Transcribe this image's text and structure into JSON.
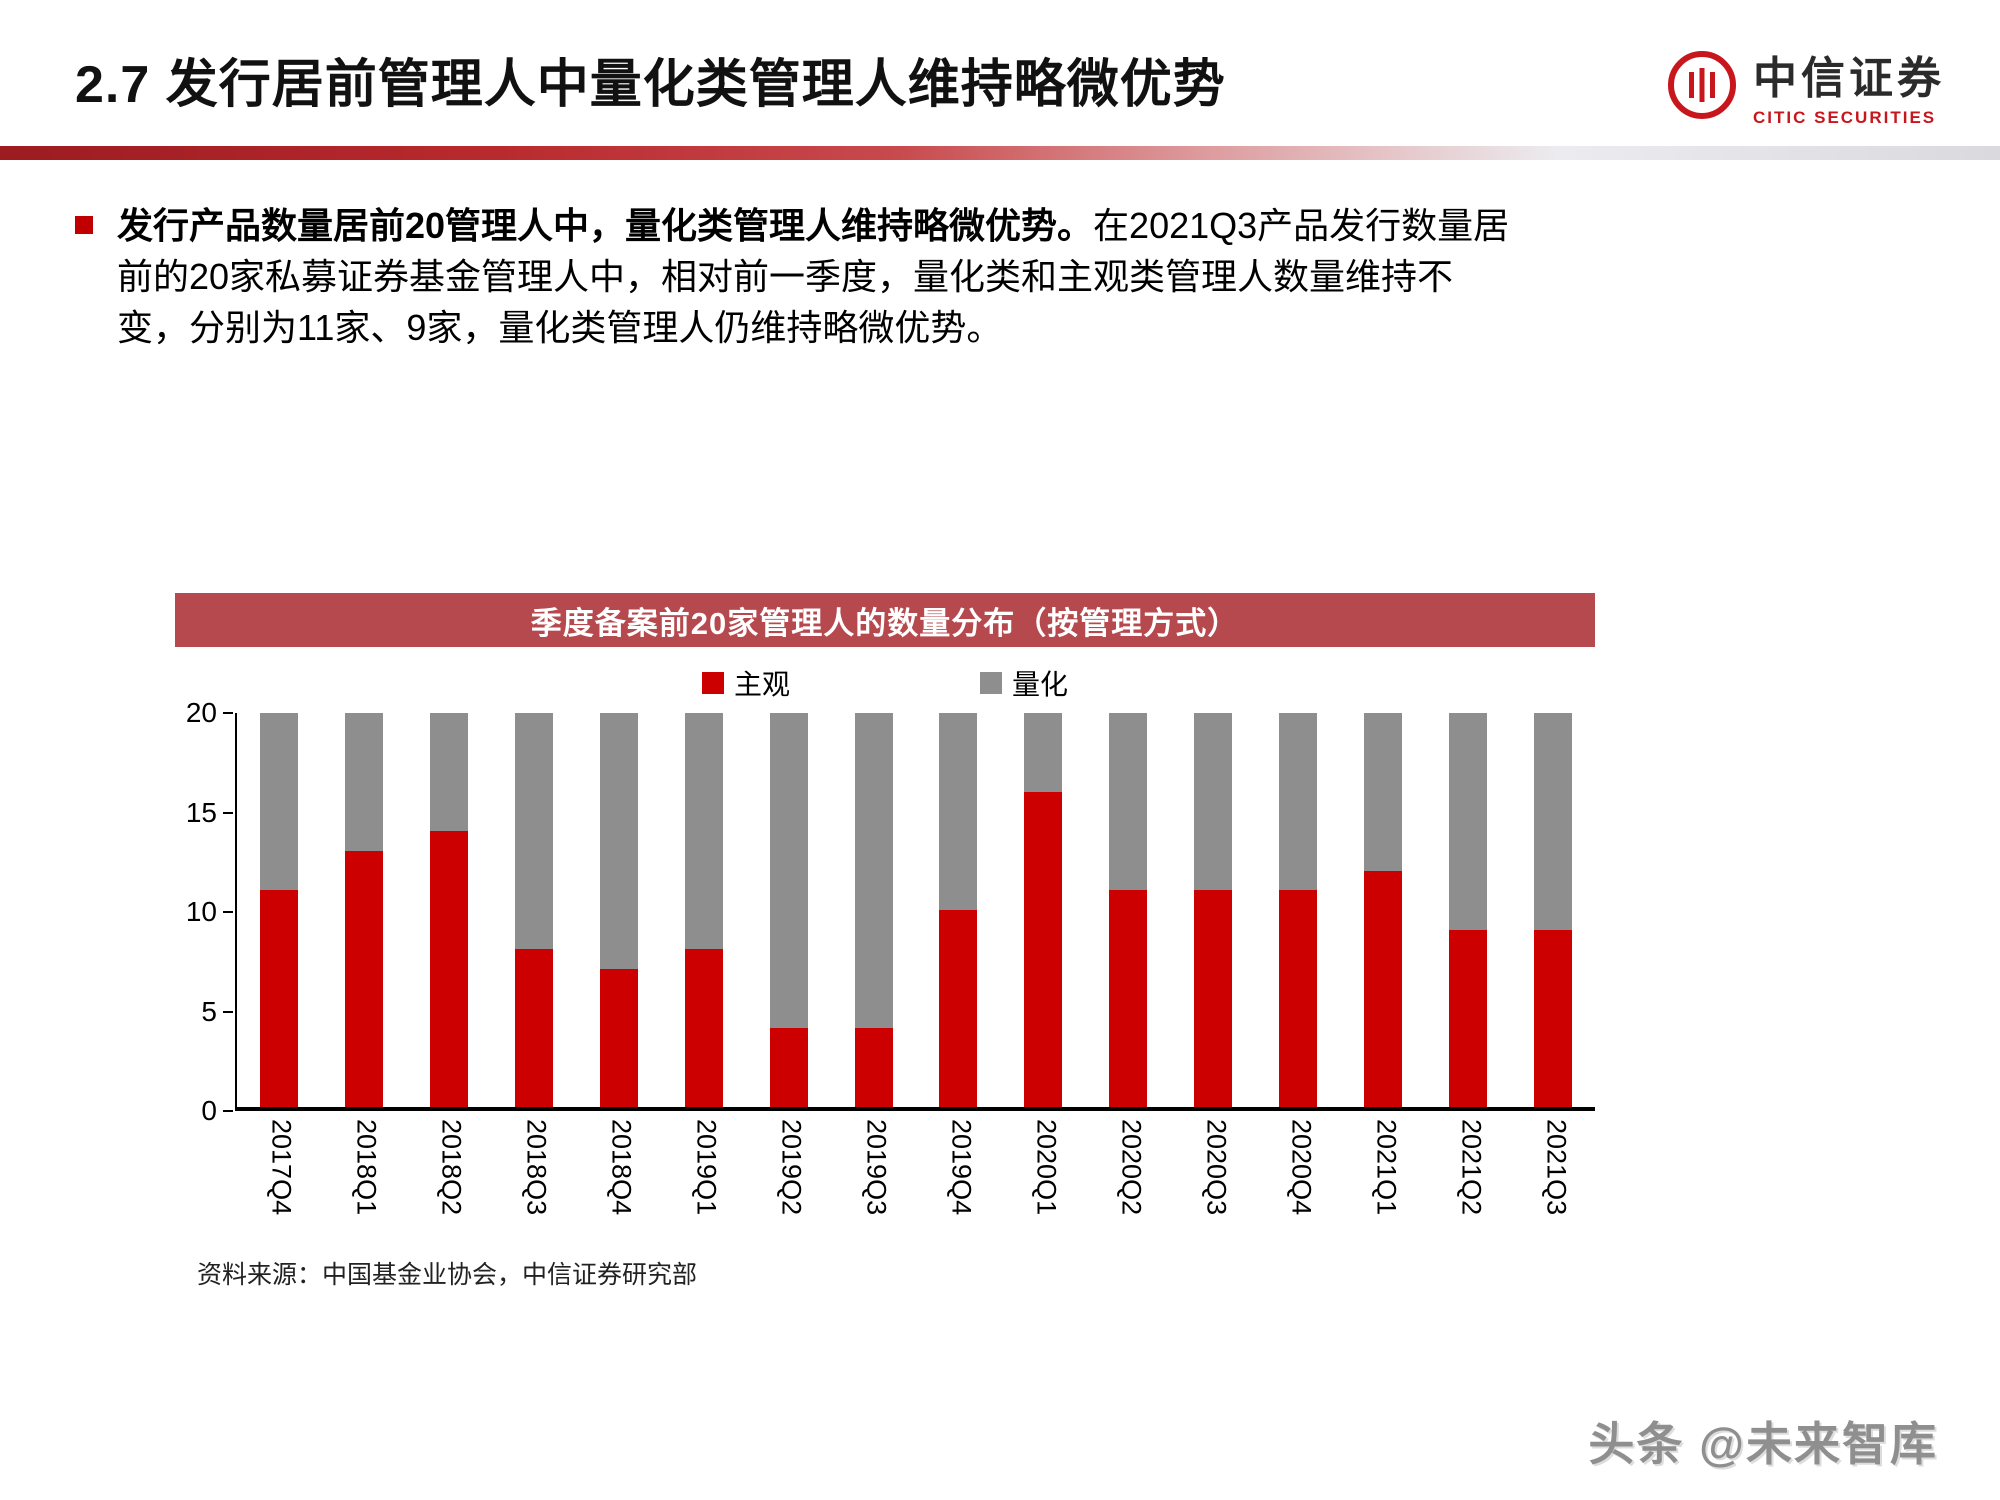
{
  "header": {
    "title": "2.7 发行居前管理人中量化类管理人维持略微优势",
    "logo_cn": "中信证券",
    "logo_en": "CITIC SECURITIES"
  },
  "body": {
    "lead_bold": "发行产品数量居前20管理人中，量化类管理人维持略微优势。",
    "text": "在2021Q3产品发行数量居前的20家私募证券基金管理人中，相对前一季度，量化类和主观类管理人数量维持不变，分别为11家、9家，量化类管理人仍维持略微优势。"
  },
  "chart_data": {
    "type": "bar",
    "stacked": true,
    "title": "季度备案前20家管理人的数量分布（按管理方式）",
    "categories": [
      "2017Q4",
      "2018Q1",
      "2018Q2",
      "2018Q3",
      "2018Q4",
      "2019Q1",
      "2019Q2",
      "2019Q3",
      "2019Q4",
      "2020Q1",
      "2020Q2",
      "2020Q3",
      "2020Q4",
      "2021Q1",
      "2021Q2",
      "2021Q3"
    ],
    "series": [
      {
        "name": "主观",
        "color": "#cc0000",
        "values": [
          11,
          13,
          14,
          8,
          7,
          8,
          4,
          4,
          10,
          16,
          11,
          11,
          11,
          12,
          9,
          9
        ]
      },
      {
        "name": "量化",
        "color": "#8e8e8e",
        "values": [
          9,
          7,
          6,
          12,
          13,
          12,
          16,
          16,
          10,
          4,
          9,
          9,
          9,
          8,
          11,
          11
        ]
      }
    ],
    "ylim": [
      0,
      20
    ],
    "yticks": [
      0,
      5,
      10,
      15,
      20
    ],
    "legend_position": "top",
    "grid": false,
    "xlabel": "",
    "ylabel": ""
  },
  "chart": {
    "source": "资料来源：中国基金业协会，中信证券研究部"
  },
  "footer": {
    "watermark": "头条 @未来智库"
  },
  "colors": {
    "accent_red": "#c00000",
    "banner_red": "#b5494e",
    "bar_red": "#cc0000",
    "bar_gray": "#8e8e8e",
    "logo_red": "#c8161d"
  }
}
